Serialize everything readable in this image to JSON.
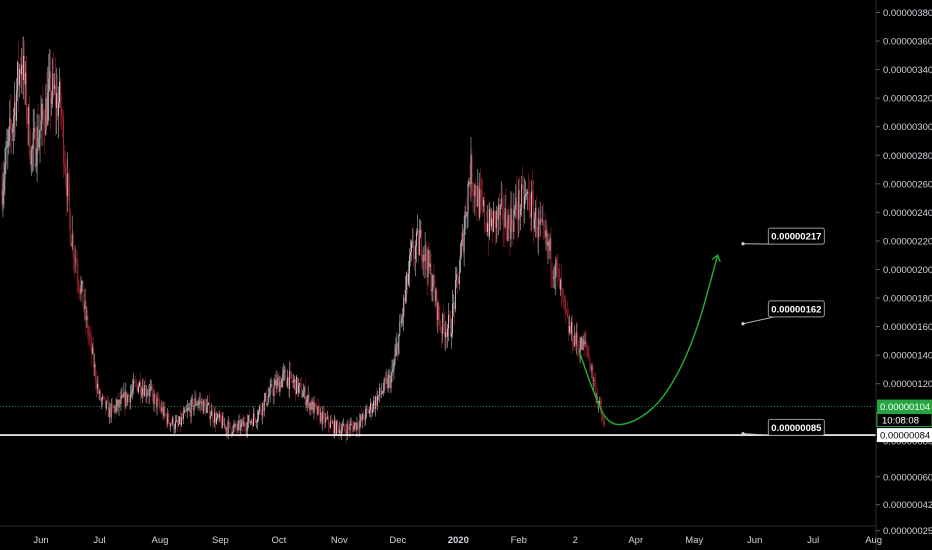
{
  "chart_data": {
    "type": "candlestick",
    "title": "",
    "xlabel": "",
    "ylabel": "",
    "price_axis": {
      "ticks": [
        "0.00000380",
        "0.00000360",
        "0.00000340",
        "0.00000320",
        "0.00000300",
        "0.00000280",
        "0.00000260",
        "0.00000240",
        "0.00000220",
        "0.00000200",
        "0.00000180",
        "0.00000160",
        "0.00000140",
        "0.00000120",
        "0.00000100",
        "0.00000080",
        "0.00000060",
        "0.00000042",
        "0.00000025"
      ],
      "tick_values": [
        380,
        360,
        340,
        320,
        300,
        280,
        260,
        240,
        220,
        200,
        180,
        160,
        140,
        120,
        100,
        80,
        60,
        42,
        25
      ],
      "unit_scale": 1e-08
    },
    "time_axis": {
      "ticks": [
        {
          "label": "Jun",
          "idx": 20,
          "bold": false
        },
        {
          "label": "Jul",
          "idx": 50,
          "bold": false
        },
        {
          "label": "Aug",
          "idx": 81,
          "bold": false
        },
        {
          "label": "Sep",
          "idx": 112,
          "bold": false
        },
        {
          "label": "Oct",
          "idx": 142,
          "bold": false
        },
        {
          "label": "Nov",
          "idx": 173,
          "bold": false
        },
        {
          "label": "Dec",
          "idx": 203,
          "bold": false
        },
        {
          "label": "2020",
          "idx": 234,
          "bold": true
        },
        {
          "label": "Feb",
          "idx": 265,
          "bold": false
        },
        {
          "label": "2",
          "idx": 294,
          "bold": false
        },
        {
          "label": "Apr",
          "idx": 325,
          "bold": false
        },
        {
          "label": "May",
          "idx": 355,
          "bold": false
        },
        {
          "label": "Jun",
          "idx": 386,
          "bold": false
        },
        {
          "label": "Jul",
          "idx": 416,
          "bold": false
        },
        {
          "label": "Aug",
          "idx": 447,
          "bold": false
        }
      ]
    },
    "price_path": [
      [
        0,
        260
      ],
      [
        5,
        300
      ],
      [
        10,
        350
      ],
      [
        15,
        280
      ],
      [
        20,
        300
      ],
      [
        25,
        325
      ],
      [
        30,
        315
      ],
      [
        35,
        230
      ],
      [
        40,
        190
      ],
      [
        45,
        150
      ],
      [
        50,
        110
      ],
      [
        55,
        100
      ],
      [
        60,
        105
      ],
      [
        65,
        112
      ],
      [
        70,
        120
      ],
      [
        75,
        115
      ],
      [
        80,
        105
      ],
      [
        85,
        95
      ],
      [
        90,
        90
      ],
      [
        95,
        100
      ],
      [
        100,
        108
      ],
      [
        105,
        103
      ],
      [
        110,
        95
      ],
      [
        115,
        90
      ],
      [
        120,
        88
      ],
      [
        125,
        92
      ],
      [
        130,
        97
      ],
      [
        135,
        108
      ],
      [
        140,
        118
      ],
      [
        145,
        125
      ],
      [
        150,
        120
      ],
      [
        155,
        112
      ],
      [
        160,
        102
      ],
      [
        165,
        95
      ],
      [
        170,
        90
      ],
      [
        175,
        88
      ],
      [
        180,
        90
      ],
      [
        185,
        95
      ],
      [
        190,
        105
      ],
      [
        195,
        115
      ],
      [
        200,
        125
      ],
      [
        205,
        165
      ],
      [
        210,
        210
      ],
      [
        215,
        220
      ],
      [
        220,
        195
      ],
      [
        225,
        160
      ],
      [
        230,
        160
      ],
      [
        235,
        205
      ],
      [
        240,
        270
      ],
      [
        245,
        245
      ],
      [
        250,
        230
      ],
      [
        255,
        238
      ],
      [
        260,
        232
      ],
      [
        265,
        245
      ],
      [
        270,
        250
      ],
      [
        275,
        228
      ],
      [
        280,
        215
      ],
      [
        285,
        195
      ],
      [
        290,
        160
      ],
      [
        295,
        148
      ],
      [
        300,
        145
      ],
      [
        305,
        112
      ],
      [
        309,
        89
      ]
    ],
    "sample_step": 0.5,
    "up_color": "#d1d4dc",
    "down_color": "#b22833",
    "support_line": {
      "value": 84,
      "label": "0.00000084",
      "color": "#ffffff"
    },
    "current_price": {
      "value": 104,
      "label": "0.00000104",
      "timer": "10:08:08",
      "color": "#26a541"
    },
    "projection": {
      "color": "#22a832",
      "points": [
        [
          296,
          143
        ],
        [
          303,
          115
        ],
        [
          311,
          90
        ],
        [
          325,
          93
        ],
        [
          340,
          110
        ],
        [
          355,
          150
        ],
        [
          367,
          210
        ]
      ]
    },
    "callouts": [
      {
        "label": "0.00000217",
        "box_idx": 393,
        "box_price": 229,
        "tip_idx": 380,
        "tip_price": 218
      },
      {
        "label": "0.00000162",
        "box_idx": 393,
        "box_price": 178,
        "tip_idx": 380,
        "tip_price": 162
      },
      {
        "label": "0.00000085",
        "box_idx": 393,
        "box_price": 95,
        "tip_idx": 380,
        "tip_price": 85
      }
    ],
    "grid": false,
    "legend": "none"
  },
  "colors": {
    "background": "#000000",
    "axis_text": "#d1d4dc",
    "axis_line": "#2a2e39"
  }
}
